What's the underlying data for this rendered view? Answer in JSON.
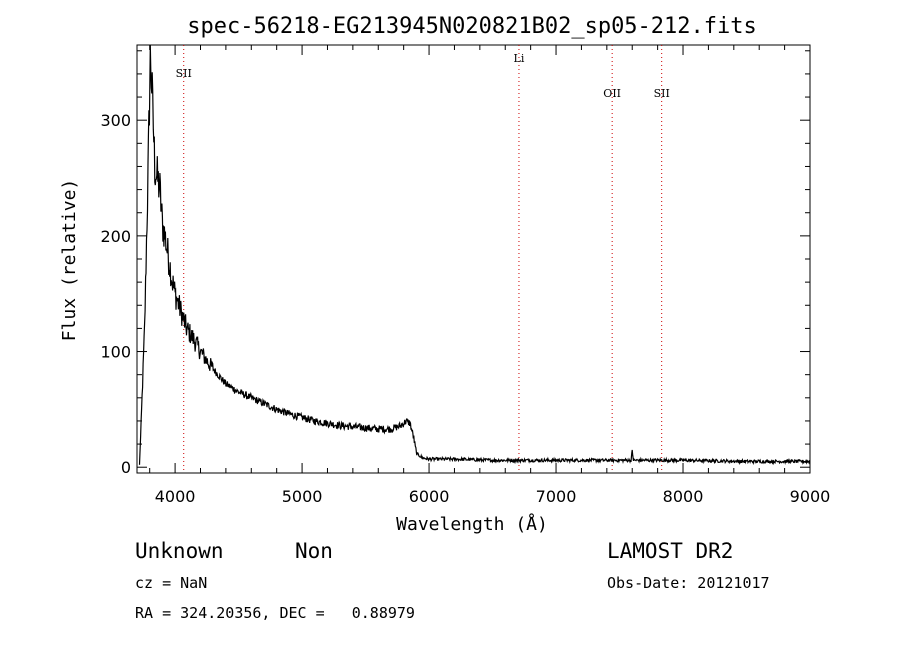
{
  "chart_data": {
    "type": "line",
    "title": "spec-56218-EG213945N020821B02_sp05-212.fits",
    "xlabel": "Wavelength (Å)",
    "ylabel": "Flux (relative)",
    "xlim": [
      3700,
      9000
    ],
    "ylim": [
      -5,
      365
    ],
    "x_ticks": [
      "4000",
      "5000",
      "6000",
      "7000",
      "8000",
      "9000"
    ],
    "y_ticks": [
      "0",
      "100",
      "200",
      "300"
    ],
    "x_tick_values": [
      4000,
      5000,
      6000,
      7000,
      8000,
      9000
    ],
    "y_tick_values": [
      0,
      100,
      200,
      300
    ],
    "grid": false,
    "line_color": "#000000",
    "marker_color": "#cc0000",
    "lines": [
      {
        "label": "SII",
        "wavelength": 4068
      },
      {
        "label": "Li",
        "wavelength": 6708
      },
      {
        "label": "OII",
        "wavelength": 7442
      },
      {
        "label": "SII",
        "wavelength": 7832
      }
    ],
    "series": [
      {
        "x": [
          3720,
          3760,
          3790,
          3805,
          3820,
          3840,
          3860,
          3880,
          3900,
          3920,
          3950,
          3980,
          4000,
          4030,
          4060,
          4090,
          4120,
          4150,
          4200,
          4250,
          4300,
          4400,
          4500,
          4600,
          4700,
          4800,
          4900,
          5000,
          5100,
          5200,
          5300,
          5400,
          5500,
          5600,
          5700,
          5780,
          5820,
          5850,
          5880,
          5900,
          5950,
          6000,
          6200,
          6500,
          7000,
          7500,
          7590,
          7600,
          7610,
          7700,
          8000,
          8500,
          9000
        ],
        "y": [
          2,
          120,
          270,
          360,
          320,
          260,
          250,
          240,
          210,
          200,
          180,
          160,
          150,
          140,
          130,
          120,
          115,
          110,
          100,
          92,
          85,
          72,
          65,
          60,
          55,
          50,
          46,
          43,
          40,
          38,
          36,
          35,
          34,
          33,
          33,
          36,
          40,
          38,
          25,
          12,
          8,
          7,
          7,
          6,
          6,
          6,
          6,
          14,
          6,
          6,
          6,
          5,
          5
        ]
      }
    ]
  },
  "footer": {
    "class_left": "Unknown",
    "class_right": "Non",
    "survey": "LAMOST DR2",
    "cz": "cz = NaN",
    "obs_date": "Obs-Date: 20121017",
    "coords": "RA = 324.20356, DEC =   0.88979"
  }
}
